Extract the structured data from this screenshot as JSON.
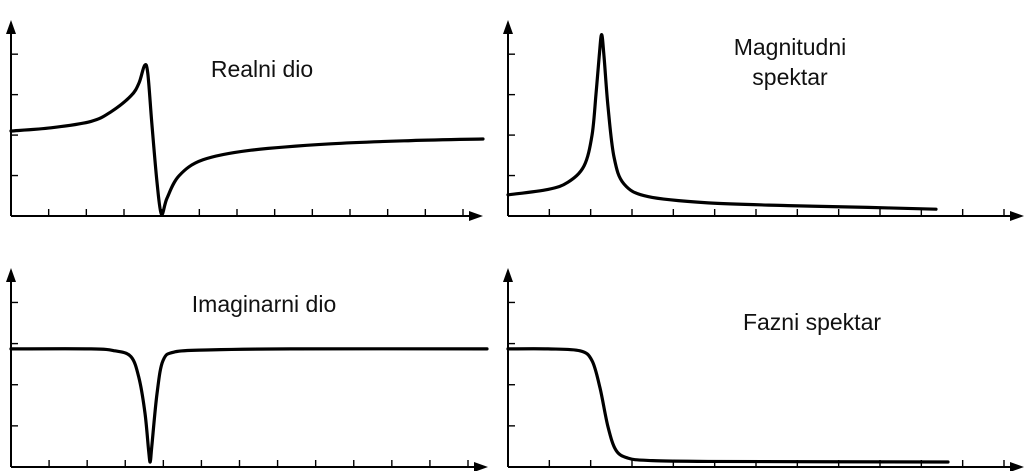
{
  "chart_data": [
    {
      "type": "line",
      "title": "Realni dio",
      "series": [
        {
          "values": [
            [
              0,
              0.5
            ],
            [
              10,
              0.52
            ],
            [
              20,
              0.56
            ],
            [
              25,
              0.62
            ],
            [
              30,
              0.72
            ],
            [
              32,
              0.8
            ],
            [
              33.4,
              0.91
            ],
            [
              34.2,
              0.86
            ],
            [
              35.2,
              0.55
            ],
            [
              36.5,
              0.18
            ],
            [
              37.6,
              -0.02
            ],
            [
              39,
              0.08
            ],
            [
              42,
              0.22
            ],
            [
              48,
              0.32
            ],
            [
              60,
              0.38
            ],
            [
              80,
              0.42
            ],
            [
              100,
              0.44
            ],
            [
              118,
              0.45
            ]
          ]
        }
      ]
    },
    {
      "type": "line",
      "title": "Magnitudni spektar",
      "series": [
        {
          "values": [
            [
              0,
              0.09
            ],
            [
              10,
              0.12
            ],
            [
              15,
              0.16
            ],
            [
              19,
              0.25
            ],
            [
              21,
              0.42
            ],
            [
              22,
              0.65
            ],
            [
              22.8,
              0.86
            ],
            [
              23.4,
              0.98
            ],
            [
              24,
              0.86
            ],
            [
              25,
              0.58
            ],
            [
              26.5,
              0.3
            ],
            [
              29,
              0.15
            ],
            [
              35,
              0.08
            ],
            [
              50,
              0.045
            ],
            [
              70,
              0.03
            ],
            [
              90,
              0.02
            ],
            [
              107,
              0.01
            ]
          ]
        }
      ]
    },
    {
      "type": "line",
      "title": "Imaginarni dio",
      "series": [
        {
          "values": [
            [
              0,
              0.58
            ],
            [
              20,
              0.58
            ],
            [
              26,
              0.57
            ],
            [
              30,
              0.54
            ],
            [
              32,
              0.43
            ],
            [
              33.5,
              0.25
            ],
            [
              34.4,
              0.06
            ],
            [
              34.8,
              0.0
            ],
            [
              35.2,
              0.08
            ],
            [
              36.5,
              0.35
            ],
            [
              38,
              0.52
            ],
            [
              41,
              0.565
            ],
            [
              50,
              0.575
            ],
            [
              70,
              0.58
            ],
            [
              119,
              0.58
            ]
          ]
        }
      ]
    },
    {
      "type": "line",
      "title": "Fazni spektar",
      "series": [
        {
          "values": [
            [
              0,
              0.58
            ],
            [
              10,
              0.58
            ],
            [
              18,
              0.57
            ],
            [
              21,
              0.52
            ],
            [
              23,
              0.38
            ],
            [
              25,
              0.18
            ],
            [
              27,
              0.06
            ],
            [
              30,
              0.02
            ],
            [
              35,
              0.008
            ],
            [
              50,
              0.003
            ],
            [
              110,
              0.0
            ]
          ]
        }
      ]
    }
  ]
}
